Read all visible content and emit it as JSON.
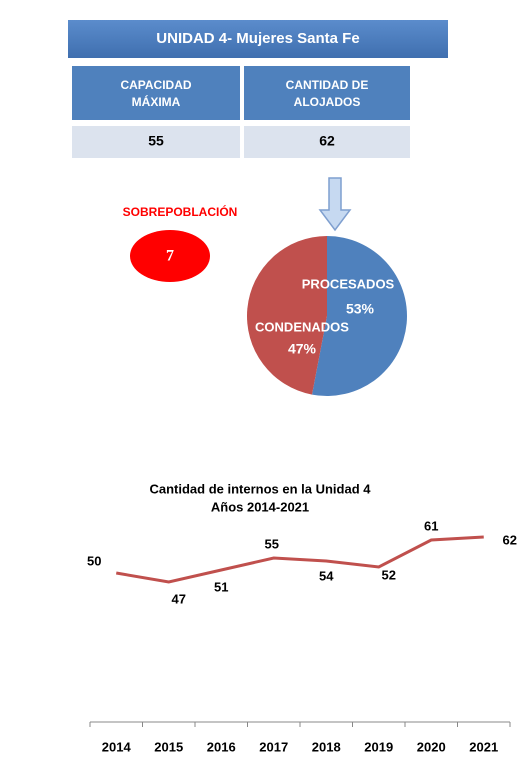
{
  "header": {
    "title": "UNIDAD 4- Mujeres Santa Fe"
  },
  "table": {
    "headers": [
      [
        "CAPACIDAD",
        "MÁXIMA"
      ],
      [
        "CANTIDAD DE",
        "ALOJADOS"
      ]
    ],
    "rows": [
      [
        "55",
        "62"
      ]
    ]
  },
  "overpopulation": {
    "label": "SOBREPOBLACIÓN",
    "value": "7"
  },
  "chart_data": [
    {
      "type": "pie",
      "categories": [
        "PROCESADOS",
        "CONDENADOS"
      ],
      "values": [
        53,
        47
      ],
      "value_labels": [
        "53%",
        "47%"
      ],
      "colors": [
        "#4f81bd",
        "#c0504d"
      ]
    },
    {
      "type": "line",
      "title": [
        "Cantidad de internos en la Unidad 4",
        "Años 2014-2021"
      ],
      "categories": [
        "2014",
        "2015",
        "2016",
        "2017",
        "2018",
        "2019",
        "2020",
        "2021"
      ],
      "values": [
        50,
        47,
        51,
        55,
        54,
        52,
        61,
        62
      ],
      "color": "#c0504d"
    }
  ]
}
